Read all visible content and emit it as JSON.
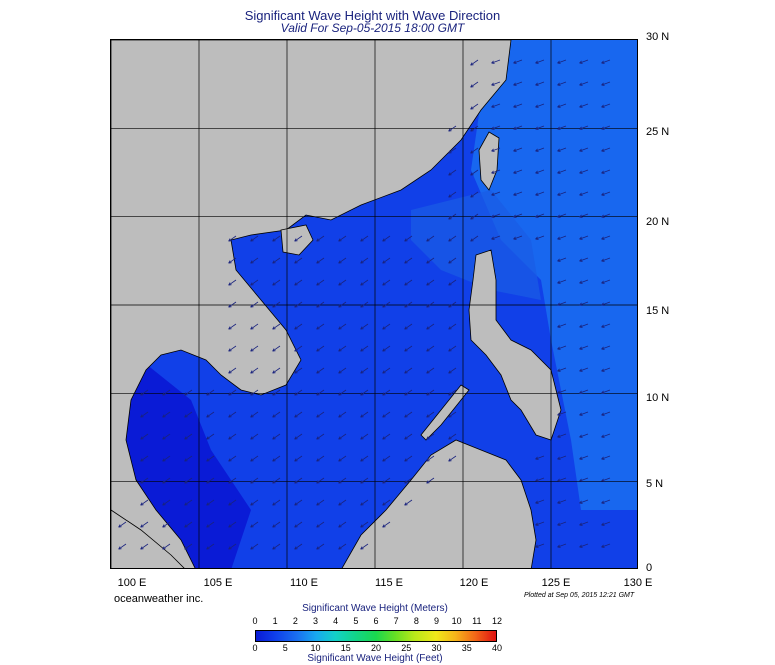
{
  "header": {
    "title": "Significant Wave Height with Wave Direction",
    "subtitle": "Valid For Sep-05-2015 18:00 GMT"
  },
  "map": {
    "lat_labels": [
      "30 N",
      "25 N",
      "20 N",
      "15 N",
      "10 N",
      "5 N",
      "0"
    ],
    "lon_labels": [
      "100 E",
      "105 E",
      "110 E",
      "115 E",
      "120 E",
      "125 E",
      "130 E"
    ],
    "lon_range": [
      100,
      130
    ],
    "lat_range": [
      0,
      30
    ],
    "grid_step_deg": 5,
    "colors": {
      "land": "#bdbdbd",
      "sea_low": "#0a1bd6",
      "sea_mid": "#1140e8",
      "sea_high": "#1a6ff0",
      "coast": "#000000",
      "grid": "#000000",
      "arrow": "#1a237e"
    }
  },
  "footer": {
    "credit": "oceanweather inc.",
    "plotted": "Plotted at Sep 05, 2015 12:21 GMT"
  },
  "legend": {
    "title_meters": "Significant Wave Height (Meters)",
    "title_feet": "Significant Wave Height (Feet)",
    "meter_ticks": [
      "0",
      "1",
      "2",
      "3",
      "4",
      "5",
      "6",
      "7",
      "8",
      "9",
      "10",
      "11",
      "12"
    ],
    "feet_ticks": [
      "0",
      "5",
      "10",
      "15",
      "20",
      "25",
      "30",
      "35",
      "40"
    ],
    "meter_max": 12,
    "feet_max": 40
  }
}
